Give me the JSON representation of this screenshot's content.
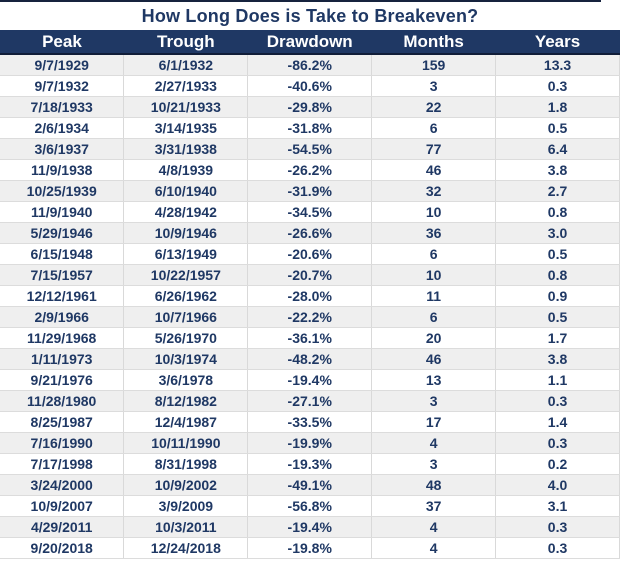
{
  "title": "How Long Does is Take to Breakeven?",
  "colors": {
    "header_bg": "#1f3864",
    "header_text": "#ffffff",
    "body_text": "#1f3864",
    "alt_row_bg": "#efefef",
    "grid_border": "#d9d9d9",
    "top_rule": "#16233e"
  },
  "chart_data": {
    "type": "table",
    "title": "How Long Does is Take to Breakeven?",
    "columns": [
      "Peak",
      "Trough",
      "Drawdown",
      "Months",
      "Years"
    ],
    "rows": [
      [
        "9/7/1929",
        "6/1/1932",
        "-86.2%",
        "159",
        "13.3"
      ],
      [
        "9/7/1932",
        "2/27/1933",
        "-40.6%",
        "3",
        "0.3"
      ],
      [
        "7/18/1933",
        "10/21/1933",
        "-29.8%",
        "22",
        "1.8"
      ],
      [
        "2/6/1934",
        "3/14/1935",
        "-31.8%",
        "6",
        "0.5"
      ],
      [
        "3/6/1937",
        "3/31/1938",
        "-54.5%",
        "77",
        "6.4"
      ],
      [
        "11/9/1938",
        "4/8/1939",
        "-26.2%",
        "46",
        "3.8"
      ],
      [
        "10/25/1939",
        "6/10/1940",
        "-31.9%",
        "32",
        "2.7"
      ],
      [
        "11/9/1940",
        "4/28/1942",
        "-34.5%",
        "10",
        "0.8"
      ],
      [
        "5/29/1946",
        "10/9/1946",
        "-26.6%",
        "36",
        "3.0"
      ],
      [
        "6/15/1948",
        "6/13/1949",
        "-20.6%",
        "6",
        "0.5"
      ],
      [
        "7/15/1957",
        "10/22/1957",
        "-20.7%",
        "10",
        "0.8"
      ],
      [
        "12/12/1961",
        "6/26/1962",
        "-28.0%",
        "11",
        "0.9"
      ],
      [
        "2/9/1966",
        "10/7/1966",
        "-22.2%",
        "6",
        "0.5"
      ],
      [
        "11/29/1968",
        "5/26/1970",
        "-36.1%",
        "20",
        "1.7"
      ],
      [
        "1/11/1973",
        "10/3/1974",
        "-48.2%",
        "46",
        "3.8"
      ],
      [
        "9/21/1976",
        "3/6/1978",
        "-19.4%",
        "13",
        "1.1"
      ],
      [
        "11/28/1980",
        "8/12/1982",
        "-27.1%",
        "3",
        "0.3"
      ],
      [
        "8/25/1987",
        "12/4/1987",
        "-33.5%",
        "17",
        "1.4"
      ],
      [
        "7/16/1990",
        "10/11/1990",
        "-19.9%",
        "4",
        "0.3"
      ],
      [
        "7/17/1998",
        "8/31/1998",
        "-19.3%",
        "3",
        "0.2"
      ],
      [
        "3/24/2000",
        "10/9/2002",
        "-49.1%",
        "48",
        "4.0"
      ],
      [
        "10/9/2007",
        "3/9/2009",
        "-56.8%",
        "37",
        "3.1"
      ],
      [
        "4/29/2011",
        "10/3/2011",
        "-19.4%",
        "4",
        "0.3"
      ],
      [
        "9/20/2018",
        "12/24/2018",
        "-19.8%",
        "4",
        "0.3"
      ]
    ]
  }
}
